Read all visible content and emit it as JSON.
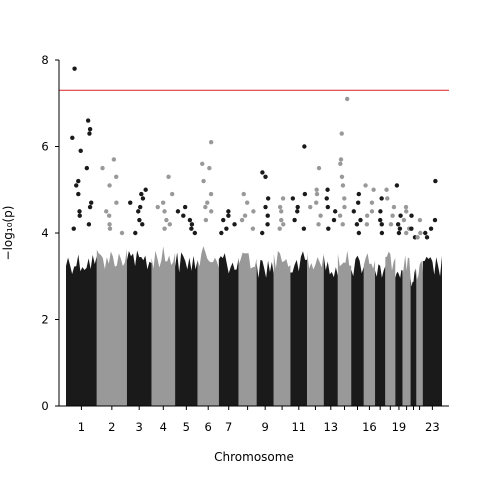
{
  "chart_data": {
    "type": "scatter",
    "title": "",
    "xlabel": "Chromosome",
    "ylabel": "−log₁₀(p)",
    "ylim": [
      0,
      8
    ],
    "yticks": [
      0,
      2,
      4,
      6,
      8
    ],
    "grid": false,
    "threshold": {
      "value": 7.3,
      "color": "#d62728"
    },
    "point_colors": {
      "odd": "#1a1a1a",
      "even": "#999999"
    },
    "x_tick_labels": [
      {
        "chromosome": 1,
        "label": "1"
      },
      {
        "chromosome": 2,
        "label": "2"
      },
      {
        "chromosome": 3,
        "label": "3"
      },
      {
        "chromosome": 4,
        "label": "4"
      },
      {
        "chromosome": 5,
        "label": "5"
      },
      {
        "chromosome": 6,
        "label": "6"
      },
      {
        "chromosome": 7,
        "label": "7"
      },
      {
        "chromosome": 9,
        "label": "9"
      },
      {
        "chromosome": 11,
        "label": "11"
      },
      {
        "chromosome": 13,
        "label": "13"
      },
      {
        "chromosome": 16,
        "label": "16"
      },
      {
        "chromosome": 19,
        "label": "19"
      },
      {
        "chromosome": 23,
        "label": "23"
      }
    ],
    "chromosomes": [
      {
        "chr": 1,
        "bulk_max": 3.6,
        "peaks": [
          7.8,
          6.6,
          6.4,
          6.3,
          6.2,
          5.9,
          5.5,
          5.2,
          5.1,
          4.9,
          4.7,
          4.6,
          4.5,
          4.4,
          4.2,
          4.1
        ]
      },
      {
        "chr": 2,
        "bulk_max": 3.7,
        "peaks": [
          5.7,
          5.5,
          5.3,
          5.1,
          4.7,
          4.5,
          4.4,
          4.2,
          4.1,
          4.0
        ]
      },
      {
        "chr": 3,
        "bulk_max": 3.6,
        "peaks": [
          5.0,
          4.9,
          4.8,
          4.7,
          4.6,
          4.5,
          4.3,
          4.2,
          4.0
        ]
      },
      {
        "chr": 4,
        "bulk_max": 3.7,
        "peaks": [
          5.3,
          4.9,
          4.7,
          4.6,
          4.5,
          4.3,
          4.2,
          4.1
        ]
      },
      {
        "chr": 5,
        "bulk_max": 3.6,
        "peaks": [
          4.6,
          4.5,
          4.4,
          4.3,
          4.2,
          4.1,
          4.0
        ]
      },
      {
        "chr": 6,
        "bulk_max": 3.7,
        "peaks": [
          6.1,
          5.6,
          5.5,
          5.2,
          4.9,
          4.7,
          4.6,
          4.5,
          4.3
        ]
      },
      {
        "chr": 7,
        "bulk_max": 3.6,
        "peaks": [
          4.5,
          4.4,
          4.3,
          4.2,
          4.1,
          4.0
        ]
      },
      {
        "chr": 8,
        "bulk_max": 3.6,
        "peaks": [
          4.9,
          4.7,
          4.5,
          4.4,
          4.3,
          4.1
        ]
      },
      {
        "chr": 9,
        "bulk_max": 3.5,
        "peaks": [
          5.4,
          5.3,
          4.8,
          4.6,
          4.4,
          4.2,
          4.0
        ]
      },
      {
        "chr": 10,
        "bulk_max": 3.6,
        "peaks": [
          4.8,
          4.6,
          4.5,
          4.3,
          4.2,
          4.1
        ]
      },
      {
        "chr": 11,
        "bulk_max": 3.6,
        "peaks": [
          6.0,
          4.9,
          4.8,
          4.6,
          4.5,
          4.3,
          4.1
        ]
      },
      {
        "chr": 12,
        "bulk_max": 3.7,
        "peaks": [
          5.5,
          5.0,
          4.9,
          4.7,
          4.6,
          4.4,
          4.2
        ]
      },
      {
        "chr": 13,
        "bulk_max": 3.5,
        "peaks": [
          5.0,
          4.8,
          4.6,
          4.5,
          4.3,
          4.1
        ]
      },
      {
        "chr": 14,
        "bulk_max": 3.7,
        "peaks": [
          7.1,
          6.3,
          5.7,
          5.6,
          5.3,
          5.1,
          4.8,
          4.6,
          4.4,
          4.2
        ]
      },
      {
        "chr": 15,
        "bulk_max": 3.5,
        "peaks": [
          4.9,
          4.7,
          4.5,
          4.3,
          4.2,
          4.0
        ]
      },
      {
        "chr": 16,
        "bulk_max": 3.6,
        "peaks": [
          5.1,
          5.0,
          4.7,
          4.5,
          4.4,
          4.2
        ]
      },
      {
        "chr": 17,
        "bulk_max": 3.5,
        "peaks": [
          4.8,
          4.5,
          4.3,
          4.2,
          4.0
        ]
      },
      {
        "chr": 18,
        "bulk_max": 3.6,
        "peaks": [
          5.0,
          4.8,
          4.6,
          4.4,
          4.2
        ]
      },
      {
        "chr": 19,
        "bulk_max": 3.5,
        "peaks": [
          5.1,
          4.4,
          4.2,
          4.1,
          4.0
        ]
      },
      {
        "chr": 20,
        "bulk_max": 3.5,
        "peaks": [
          4.6,
          4.5,
          4.3,
          4.1,
          4.0
        ]
      },
      {
        "chr": 21,
        "bulk_max": 3.3,
        "peaks": [
          4.4,
          4.1,
          3.9
        ]
      },
      {
        "chr": 22,
        "bulk_max": 3.4,
        "peaks": [
          4.3,
          4.0,
          3.9
        ]
      },
      {
        "chr": 23,
        "bulk_max": 3.5,
        "peaks": [
          5.2,
          4.3,
          4.1,
          4.0,
          3.9
        ]
      }
    ]
  }
}
